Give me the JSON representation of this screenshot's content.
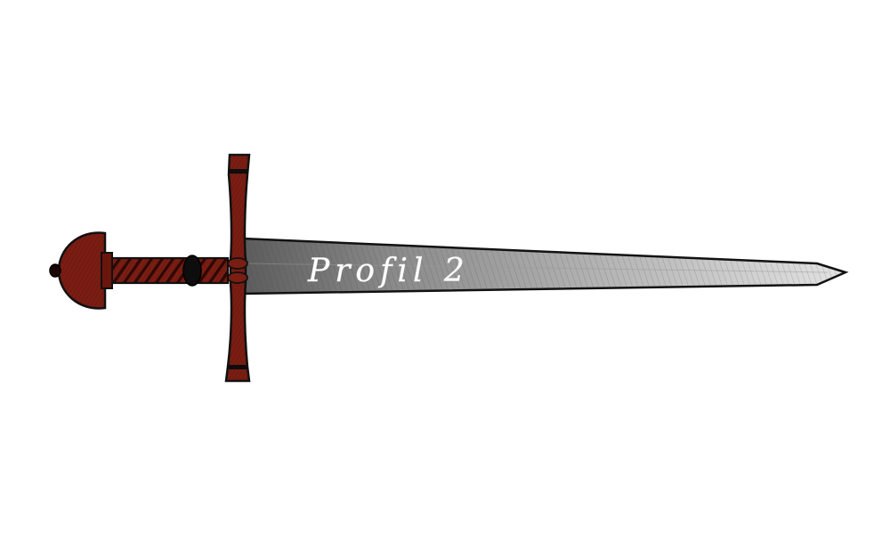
{
  "image": {
    "blade_text": "Profil 2"
  },
  "colors": {
    "background": "#ffffff",
    "leather": "#7a1d12",
    "leather_dark": "#4a0d08",
    "blade_light": "#d8d8d8",
    "blade_dark": "#6e6e6e",
    "outline": "#111111",
    "label": "#ffffff"
  }
}
